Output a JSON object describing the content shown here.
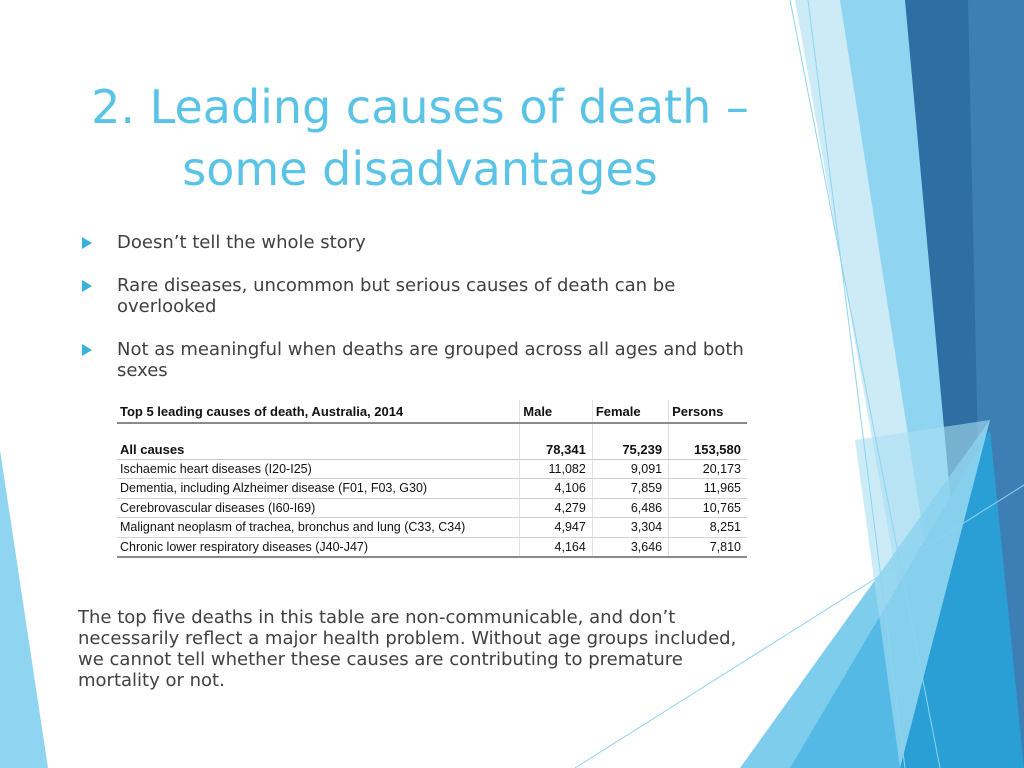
{
  "slide": {
    "title_line1": "2. Leading causes of death –",
    "title_line2": "some disadvantages",
    "bullets": [
      "Doesn’t tell the whole story",
      "Rare diseases, uncommon but serious causes of death can be overlooked",
      "Not as meaningful when deaths are grouped across all ages and both sexes"
    ],
    "footer": "The top five deaths in this table are non-communicable, and don’t necessarily reflect a major health problem. Without age groups included, we cannot tell whether these causes are contributing to premature mortality or not."
  },
  "table": {
    "title": "Top 5 leading causes of death, Australia, 2014",
    "headers": [
      "Male",
      "Female",
      "Persons"
    ],
    "all": {
      "label": "All causes",
      "male": "78,341",
      "female": "75,239",
      "persons": "153,580"
    },
    "rows": [
      {
        "label": "Ischaemic heart diseases (I20-I25)",
        "male": "11,082",
        "female": "9,091",
        "persons": "20,173"
      },
      {
        "label": "Dementia, including Alzheimer disease (F01, F03, G30)",
        "male": "4,106",
        "female": "7,859",
        "persons": "11,965"
      },
      {
        "label": "Cerebrovascular diseases (I60-I69)",
        "male": "4,279",
        "female": "6,486",
        "persons": "10,765"
      },
      {
        "label": "Malignant neoplasm of trachea, bronchus and lung (C33, C34)",
        "male": "4,947",
        "female": "3,304",
        "persons": "8,251"
      },
      {
        "label": "Chronic lower respiratory diseases (J40-J47)",
        "male": "4,164",
        "female": "3,646",
        "persons": "7,810"
      }
    ]
  },
  "theme": {
    "title_color": "#5bc4e6",
    "text_color": "#404040",
    "bullet_color": "#3ab0dd",
    "accent_dark": "#2e6ea3",
    "accent_light": "#8fd4f0"
  }
}
